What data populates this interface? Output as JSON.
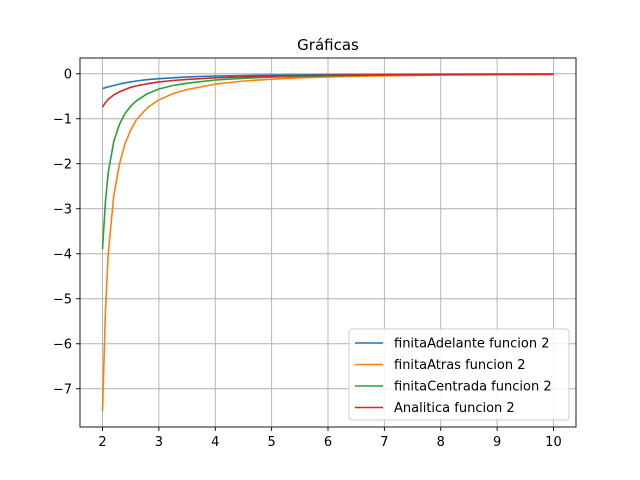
{
  "chart_data": {
    "type": "line",
    "title": "Gráficas",
    "xlabel": "",
    "ylabel": "",
    "xlim": [
      1.6,
      10.4
    ],
    "ylim": [
      -7.85,
      0.35
    ],
    "xticks": [
      2,
      3,
      4,
      5,
      6,
      7,
      8,
      9,
      10
    ],
    "xtick_labels": [
      "2",
      "3",
      "4",
      "5",
      "6",
      "7",
      "8",
      "9",
      "10"
    ],
    "yticks": [
      0,
      -1,
      -2,
      -3,
      -4,
      -5,
      -6,
      -7
    ],
    "ytick_labels": [
      "0",
      "−1",
      "−2",
      "−3",
      "−4",
      "−5",
      "−6",
      "−7"
    ],
    "grid": true,
    "legend_position": "bottom-right",
    "x": [
      2.0,
      2.05,
      2.1,
      2.2,
      2.3,
      2.4,
      2.5,
      2.6,
      2.8,
      3.0,
      3.25,
      3.5,
      4.0,
      4.5,
      5.0,
      5.5,
      6.0,
      7.0,
      8.0,
      9.0,
      10.0
    ],
    "series": [
      {
        "name": "finitaAdelante funcion 2",
        "color": "#1f77b4",
        "values": [
          -0.33,
          -0.31,
          -0.29,
          -0.26,
          -0.23,
          -0.2,
          -0.18,
          -0.16,
          -0.13,
          -0.11,
          -0.09,
          -0.07,
          -0.05,
          -0.04,
          -0.03,
          -0.025,
          -0.02,
          -0.015,
          -0.01,
          -0.008,
          -0.006
        ]
      },
      {
        "name": "finitaAtras funcion 2",
        "color": "#ff7f0e",
        "values": [
          -7.5,
          -5.3,
          -4.0,
          -2.7,
          -2.0,
          -1.55,
          -1.25,
          -1.02,
          -0.75,
          -0.58,
          -0.44,
          -0.35,
          -0.23,
          -0.16,
          -0.12,
          -0.09,
          -0.07,
          -0.045,
          -0.03,
          -0.02,
          -0.015
        ]
      },
      {
        "name": "finitaCentrada funcion 2",
        "color": "#2ca02c",
        "values": [
          -3.9,
          -2.85,
          -2.2,
          -1.5,
          -1.12,
          -0.88,
          -0.72,
          -0.6,
          -0.44,
          -0.34,
          -0.26,
          -0.21,
          -0.14,
          -0.1,
          -0.075,
          -0.058,
          -0.046,
          -0.03,
          -0.021,
          -0.015,
          -0.011
        ]
      },
      {
        "name": "Analitica funcion 2",
        "color": "#d62728",
        "values": [
          -0.74,
          -0.64,
          -0.57,
          -0.47,
          -0.4,
          -0.35,
          -0.3,
          -0.27,
          -0.22,
          -0.18,
          -0.15,
          -0.125,
          -0.09,
          -0.068,
          -0.053,
          -0.042,
          -0.035,
          -0.024,
          -0.017,
          -0.013,
          -0.01
        ]
      }
    ]
  }
}
